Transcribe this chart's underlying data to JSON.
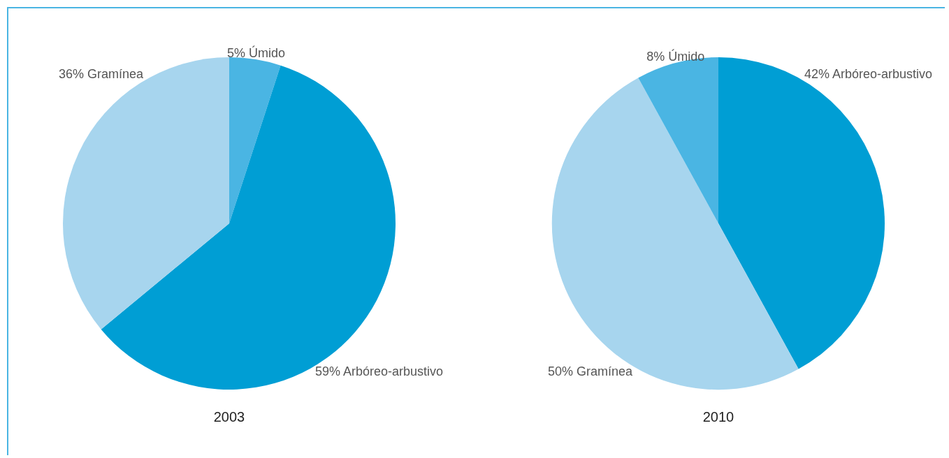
{
  "chart_data": [
    {
      "type": "pie",
      "title": "2003",
      "categories": [
        "Úmido",
        "Arbóreo-arbustivo",
        "Gramínea"
      ],
      "values": [
        5,
        59,
        36
      ],
      "value_labels": [
        "5%",
        "59%",
        "36%"
      ],
      "colors": [
        "#4ab5e3",
        "#009ed4",
        "#a7d5ee"
      ]
    },
    {
      "type": "pie",
      "title": "2010",
      "categories": [
        "Arbóreo-arbustivo",
        "Gramínea",
        "Úmido"
      ],
      "values": [
        42,
        50,
        8
      ],
      "value_labels": [
        "42%",
        "50%",
        "8%"
      ],
      "colors": [
        "#009ed4",
        "#a7d5ee",
        "#4ab5e3"
      ]
    }
  ]
}
